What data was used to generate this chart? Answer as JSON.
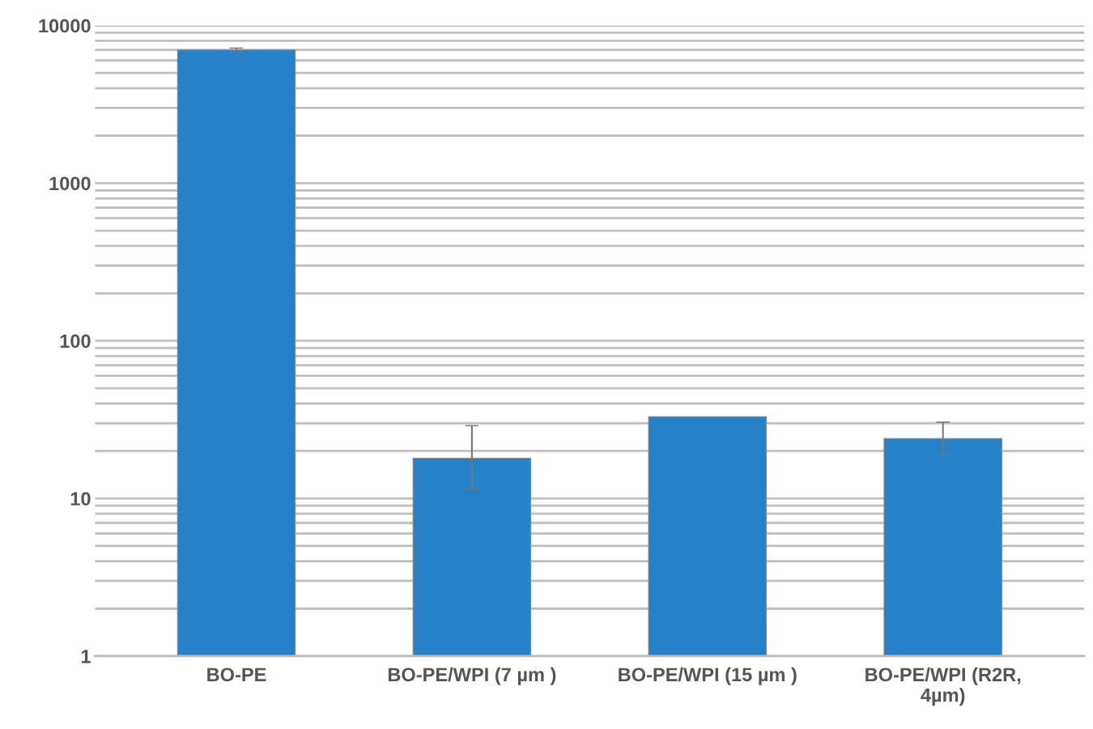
{
  "chart_data": {
    "type": "bar",
    "categories": [
      "BO-PE",
      "BO-PE/WPI (7 µm )",
      "BO-PE/WPI (15 µm )",
      "BO-PE/WPI (R2R,\n4µm)"
    ],
    "values": [
      7000,
      18,
      33,
      24
    ],
    "errors": [
      200,
      [
        11.5,
        29
      ],
      null,
      [
        19,
        30.5
      ]
    ],
    "color": "#2681c8",
    "log": true,
    "ylim": [
      1,
      10000
    ],
    "yticks": [
      1,
      10,
      100,
      1000,
      10000
    ],
    "grid": "y"
  }
}
